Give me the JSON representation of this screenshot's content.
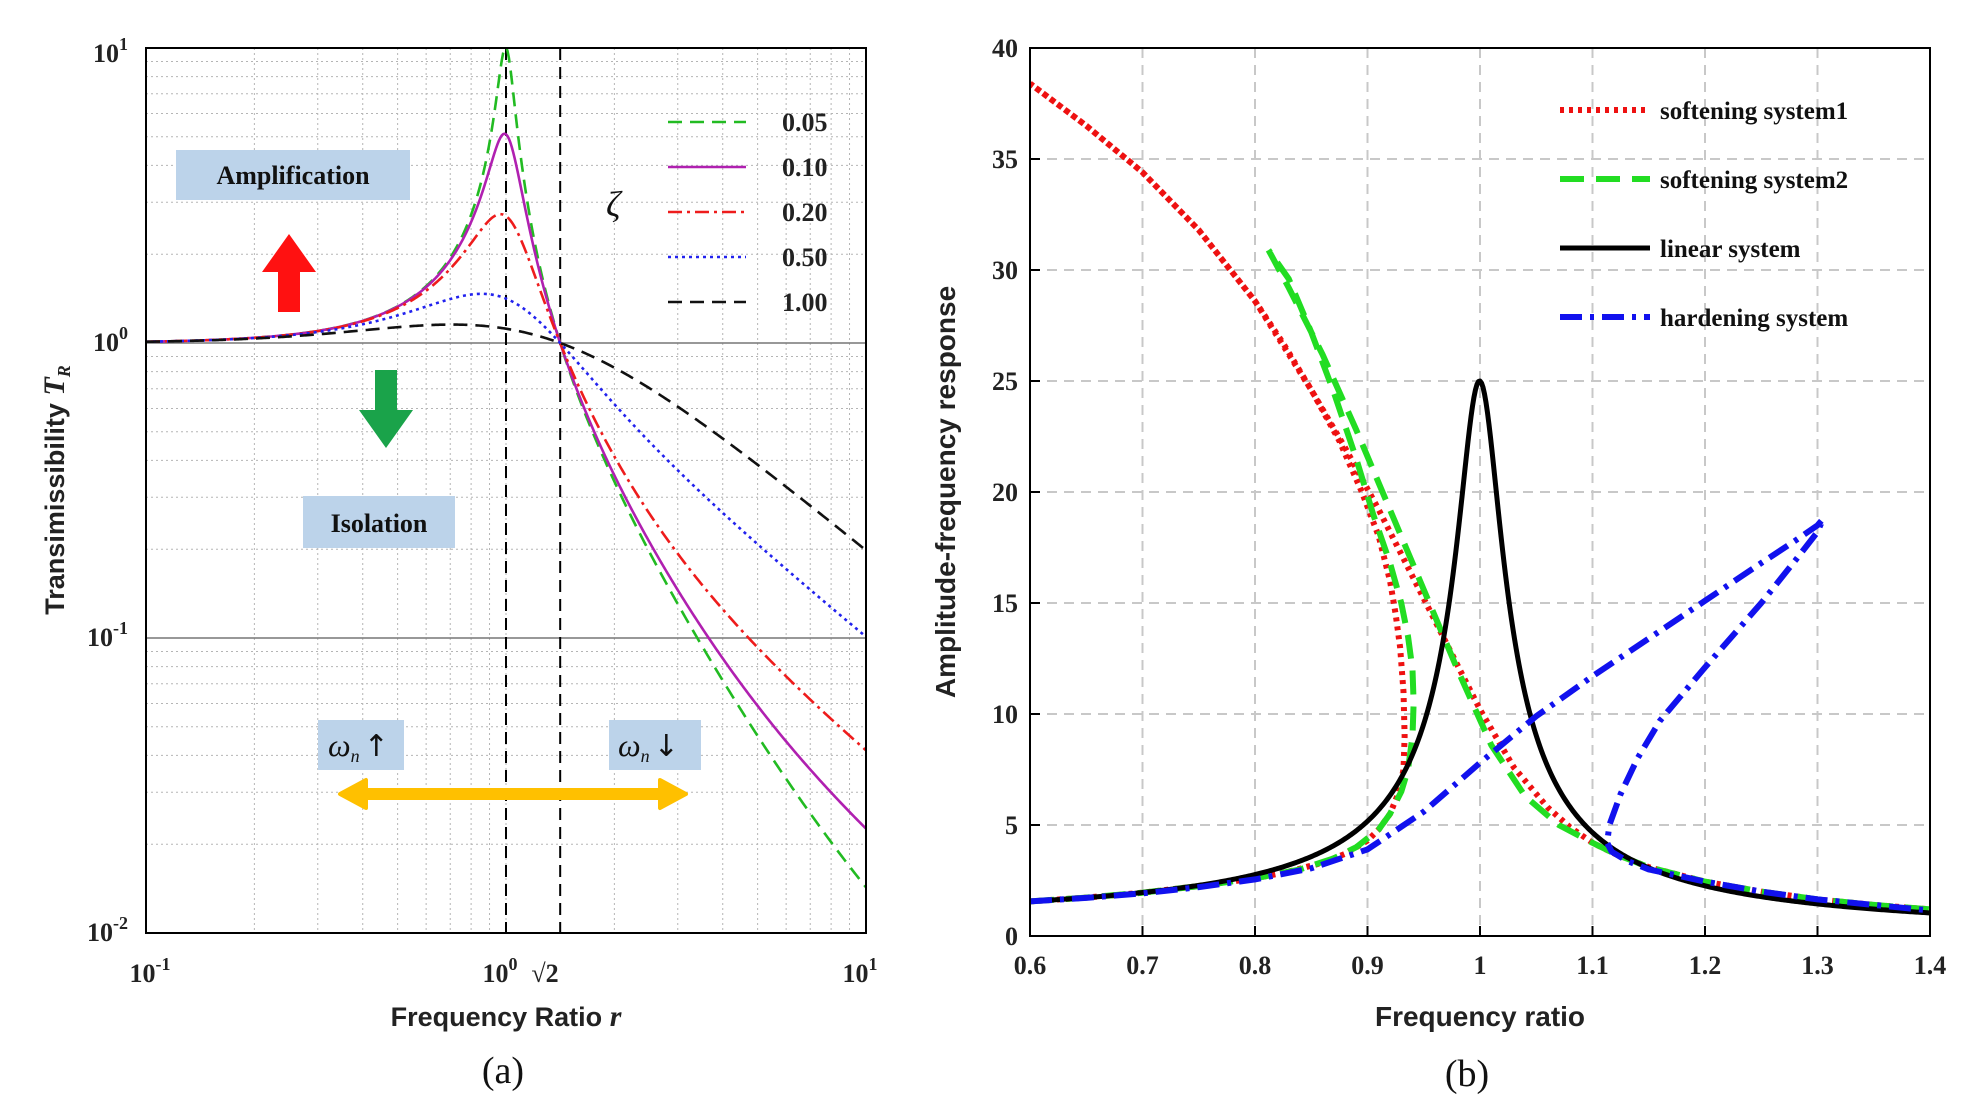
{
  "chart_data": [
    {
      "id": "a",
      "type": "line",
      "xscale": "log",
      "yscale": "log",
      "xlim": [
        0.1,
        10
      ],
      "ylim": [
        0.01,
        10
      ],
      "xlabel": "Frequency Ratio",
      "xlabel_var": "r",
      "ylabel": "Transimissibility",
      "ylabel_var": "T",
      "ylabel_sub": "R",
      "caption": "(a)",
      "grid": true,
      "x_tick_labels": [
        {
          "base": "10",
          "exp": "-1"
        },
        {
          "base": "10",
          "exp": "0"
        },
        {
          "base": "10",
          "exp": "1"
        }
      ],
      "sqrt2_label": "√2",
      "y_tick_labels": [
        {
          "base": "10",
          "exp": "-2"
        },
        {
          "base": "10",
          "exp": "-1"
        },
        {
          "base": "10",
          "exp": "0"
        },
        {
          "base": "10",
          "exp": "1"
        }
      ],
      "legend_title": "ζ",
      "legend_position": "top-right",
      "series": [
        {
          "name": "0.05",
          "zeta": 0.05,
          "color": "#22bb22",
          "dash": "14,8"
        },
        {
          "name": "0.10",
          "zeta": 0.1,
          "color": "#b020b0",
          "dash": ""
        },
        {
          "name": "0.20",
          "zeta": 0.2,
          "color": "#ee1c1c",
          "dash": "14,5,3,5"
        },
        {
          "name": "0.50",
          "zeta": 0.5,
          "color": "#2222ee",
          "dash": "3,4"
        },
        {
          "name": "1.00",
          "zeta": 1.0,
          "color": "#111111",
          "dash": "14,8"
        }
      ],
      "reference_lines": {
        "horizontal": [
          1,
          0.1
        ],
        "vertical": [
          1,
          1.4142
        ]
      },
      "annotations": {
        "amplification": "Amplification",
        "isolation": "Isolation",
        "omega_symbol": "ω",
        "omega_sub": "n",
        "up_arrow": "↑",
        "down_arrow": "↓",
        "box_color": "#bcd3ea",
        "amp_arrow_color": "#ff1111",
        "iso_arrow_color": "#1aa34a",
        "double_arrow_color": "#ffc000"
      }
    },
    {
      "id": "b",
      "type": "line",
      "xlim": [
        0.6,
        1.4
      ],
      "ylim": [
        0,
        40
      ],
      "xticks": [
        0.6,
        0.7,
        0.8,
        0.9,
        1,
        1.1,
        1.2,
        1.3,
        1.4
      ],
      "xtick_labels": [
        "0.6",
        "0.7",
        "0.8",
        "0.9",
        "1",
        "1.1",
        "1.2",
        "1.3",
        "1.4"
      ],
      "yticks": [
        0,
        5,
        10,
        15,
        20,
        25,
        30,
        35,
        40
      ],
      "ytick_labels": [
        "0",
        "5",
        "10",
        "15",
        "20",
        "25",
        "30",
        "35",
        "40"
      ],
      "xlabel": "Frequency ratio",
      "ylabel": "Amplitude-frequency response",
      "caption": "(b)",
      "grid": true,
      "legend_position": "top-right",
      "series": [
        {
          "name": "softening system1",
          "color": "#ee1111",
          "dash": "4,5",
          "width": 6,
          "x": [
            0.6,
            0.65,
            0.7,
            0.75,
            0.8,
            0.83,
            0.86,
            0.88,
            0.9,
            0.91,
            0.92,
            0.928,
            0.932,
            0.933,
            0.932,
            0.929,
            0.925,
            0.92,
            0.91,
            0.895,
            0.875,
            0.85,
            0.825,
            0.8,
            0.75,
            0.7,
            0.65,
            0.6
          ],
          "y": [
            1.56,
            1.73,
            1.95,
            2.25,
            2.6,
            2.9,
            3.3,
            3.7,
            4.3,
            4.8,
            5.5,
            6.5,
            7.5,
            9,
            11,
            13,
            14.5,
            16,
            18,
            20,
            22.3,
            24.6,
            26.7,
            28.6,
            31.8,
            34.4,
            36.5,
            38.4
          ],
          "x2": [
            0.6,
            0.65,
            0.7,
            0.75,
            0.8,
            0.85,
            0.88,
            0.91,
            0.94,
            0.97,
            1.0,
            1.03,
            1.06,
            1.08,
            1.1,
            1.12,
            1.15,
            1.2,
            1.25,
            1.3,
            1.35,
            1.4
          ],
          "y2": [
            38.4,
            36.5,
            34.4,
            31.8,
            28.6,
            24.6,
            22,
            19.2,
            16.2,
            13.2,
            10.2,
            7.6,
            5.8,
            4.9,
            4.2,
            3.7,
            3.1,
            2.45,
            2.0,
            1.65,
            1.4,
            1.2
          ]
        },
        {
          "name": "softening system2",
          "color": "#22dd22",
          "dash": "24,12",
          "width": 6,
          "x": [
            0.6,
            0.65,
            0.7,
            0.75,
            0.8,
            0.84,
            0.87,
            0.89,
            0.91,
            0.92,
            0.93,
            0.936,
            0.94,
            0.941,
            0.94,
            0.936,
            0.93,
            0.92,
            0.905,
            0.89,
            0.87,
            0.85,
            0.83,
            0.812
          ],
          "y": [
            1.56,
            1.73,
            1.95,
            2.25,
            2.6,
            3.0,
            3.5,
            4.0,
            4.8,
            5.5,
            6.5,
            7.5,
            9,
            10.5,
            12,
            13.5,
            15,
            16.8,
            19,
            21.5,
            24.5,
            27.2,
            29.6,
            30.9
          ],
          "x2": [
            0.812,
            0.83,
            0.86,
            0.89,
            0.92,
            0.95,
            0.98,
            1.01,
            1.04,
            1.07,
            1.1,
            1.12,
            1.15,
            1.2,
            1.25,
            1.3,
            1.35,
            1.4
          ],
          "y2": [
            30.9,
            29.2,
            26.2,
            22.8,
            19.2,
            15.6,
            12.0,
            8.6,
            6.3,
            5.0,
            4.2,
            3.7,
            3.1,
            2.45,
            2.0,
            1.65,
            1.4,
            1.2
          ]
        },
        {
          "name": "linear system",
          "color": "#000000",
          "dash": "",
          "width": 5,
          "type_curve": "linear_resonance",
          "zeta": 0.02
        },
        {
          "name": "hardening system",
          "color": "#1111ee",
          "dash": "22,8,4,8",
          "width": 6,
          "x": [
            0.6,
            0.65,
            0.7,
            0.75,
            0.8,
            0.85,
            0.9,
            0.95,
            1.0,
            1.05,
            1.1,
            1.15,
            1.2,
            1.25,
            1.28,
            1.3,
            1.305,
            1.3,
            1.28,
            1.25,
            1.2,
            1.16,
            1.14,
            1.125,
            1.115,
            1.113,
            1.117,
            1.13,
            1.15,
            1.2,
            1.25,
            1.3,
            1.35,
            1.4
          ],
          "y": [
            1.56,
            1.72,
            1.92,
            2.2,
            2.55,
            3.05,
            3.9,
            5.6,
            7.8,
            9.9,
            11.7,
            13.4,
            15.1,
            16.8,
            17.8,
            18.5,
            18.8,
            18.2,
            16.9,
            15.0,
            12.1,
            9.7,
            8.0,
            6.4,
            5.0,
            4.2,
            3.8,
            3.4,
            3.0,
            2.45,
            2.0,
            1.65,
            1.4,
            1.15
          ]
        }
      ]
    }
  ]
}
